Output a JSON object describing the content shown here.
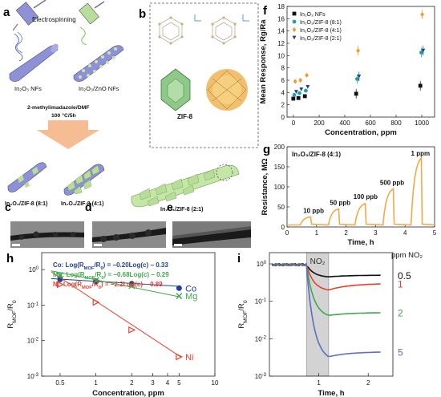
{
  "panels": {
    "a": {
      "letter": "a",
      "electrospinning": "Electrospinning",
      "nf_label": "In₂O₃ NFs",
      "zno_label": "In₂O₃/ZnO NFs",
      "condition_1": "2-methylimadazole/DMF",
      "condition_2": "100 °C/5h",
      "product_81": "In₂O₃/ZIF-8 (8:1)",
      "product_41": "In₂O₃/ZIF-8 (4:1)",
      "product_21": "In₂O₃/ZIF-8 (2:1)"
    },
    "b": {
      "letter": "b",
      "zif_label": "ZIF-8"
    },
    "c": {
      "letter": "c"
    },
    "d": {
      "letter": "d"
    },
    "e": {
      "letter": "e"
    },
    "f": {
      "letter": "f"
    },
    "g": {
      "letter": "g"
    },
    "h": {
      "letter": "h"
    },
    "i": {
      "letter": "i"
    }
  },
  "colors": {
    "nf_purple": "#8f91d6",
    "zif_green": "#b8dd9a",
    "arrow_orange": "#f4b183",
    "orange_line": "#f2a94a",
    "red": "#e8402a",
    "green": "#3ea94a",
    "blue": "#1f3f9a"
  },
  "chart_data": [
    {
      "id": "f",
      "type": "scatter",
      "xlabel": "Concentration, ppm",
      "ylabel": "Mean Response, Rg/Ra",
      "xlim": [
        -50,
        1100
      ],
      "ylim": [
        0,
        18
      ],
      "xticks": [
        0,
        200,
        400,
        600,
        800,
        1000
      ],
      "yticks": [
        0,
        2,
        4,
        6,
        8,
        10,
        12,
        14,
        16,
        18
      ],
      "legend_position": "top-left",
      "series": [
        {
          "name": "In₂O₃ NFs",
          "color": "#111111",
          "marker": "square",
          "x": [
            10,
            50,
            100,
            500,
            1000
          ],
          "y": [
            3.0,
            3.1,
            3.4,
            3.8,
            5.1
          ]
        },
        {
          "name": "In₂O₃/ZIF-8 (8:1)",
          "color": "#1fa0a8",
          "marker": "circle",
          "x": [
            10,
            50,
            100,
            500,
            1000
          ],
          "y": [
            3.6,
            3.9,
            4.3,
            6.2,
            10.5
          ]
        },
        {
          "name": "In₂O₃/ZIF-8 (4:1)",
          "color": "#f2972c",
          "marker": "diamond",
          "x": [
            10,
            50,
            100,
            500,
            1000
          ],
          "y": [
            5.8,
            6.0,
            6.8,
            10.8,
            16.7
          ]
        },
        {
          "name": "In₂O₃/ZIF-8 (2:1)",
          "color": "#1f3f9a",
          "marker": "triangle-down",
          "x": [
            10,
            50,
            100,
            500,
            1000
          ],
          "y": [
            4.1,
            4.5,
            4.9,
            6.6,
            10.8
          ]
        }
      ]
    },
    {
      "id": "g",
      "type": "line",
      "title": "In₂O₃/ZIF-8 (4:1)",
      "xlabel": "Time, h",
      "ylabel": "Resistance, MΩ",
      "xlim": [
        0,
        5
      ],
      "ylim": [
        0,
        200
      ],
      "xticks": [
        0,
        1,
        2,
        3,
        4,
        5
      ],
      "yticks": [
        0,
        50,
        100,
        150,
        200
      ],
      "annotations": [
        {
          "text": "10 ppb",
          "x": 0.55,
          "y": 35
        },
        {
          "text": "50 ppb",
          "x": 1.45,
          "y": 55
        },
        {
          "text": "100 ppb",
          "x": 2.25,
          "y": 70
        },
        {
          "text": "500 ppb",
          "x": 3.15,
          "y": 105
        },
        {
          "text": "1 ppm",
          "x": 4.2,
          "y": 178
        }
      ],
      "pulses": [
        {
          "start": 0.45,
          "end": 0.8,
          "peak": 25
        },
        {
          "start": 1.4,
          "end": 1.75,
          "peak": 45
        },
        {
          "start": 2.3,
          "end": 2.65,
          "peak": 58
        },
        {
          "start": 3.25,
          "end": 3.6,
          "peak": 95
        },
        {
          "start": 4.2,
          "end": 4.55,
          "peak": 172
        }
      ],
      "baseline": 5
    },
    {
      "id": "h",
      "type": "scatter",
      "xlabel": "Concentration, ppm",
      "ylabel": "R_MOF/R_0",
      "xscale": "log",
      "yscale": "log",
      "xlim": [
        0.35,
        10
      ],
      "ylim": [
        0.001,
        3
      ],
      "xticks": [
        0.5,
        1,
        2,
        3,
        4,
        5,
        10
      ],
      "yticks_log": [
        -3,
        -2,
        -1,
        0
      ],
      "fits": [
        {
          "text": "Co: Log(R_MOF/R_0) = −0.20Log(c) − 0.33",
          "color": "#1f3f9a"
        },
        {
          "text": "Mg: Log(R_MOF/R_0) = −0.68Log(c) − 0.29",
          "color": "#3ea94a"
        },
        {
          "text": "Ni: Log(R_MOF/R_0) = −2.2Log(c) − 0.89",
          "color": "#e8402a"
        }
      ],
      "series": [
        {
          "name": "Co",
          "color": "#1f3f9a",
          "marker": "circle",
          "x": [
            0.5,
            1,
            2,
            5
          ],
          "y": [
            0.53,
            0.47,
            0.4,
            0.3
          ],
          "slope": -0.2,
          "intercept": -0.33
        },
        {
          "name": "Mg",
          "color": "#3ea94a",
          "marker": "x",
          "x": [
            0.5,
            1,
            2,
            5
          ],
          "y": [
            0.7,
            0.5,
            0.35,
            0.18
          ],
          "slope": -0.68,
          "intercept": -0.29
        },
        {
          "name": "Ni",
          "color": "#e8402a",
          "marker": "triangle-right",
          "x": [
            0.5,
            1,
            2,
            5
          ],
          "y": [
            0.38,
            0.12,
            0.02,
            0.0035
          ],
          "slope": -2.2,
          "intercept": -0.89
        }
      ]
    },
    {
      "id": "i",
      "type": "line",
      "xlabel": "Time, h",
      "ylabel": "R_MOF/R_0",
      "yscale": "log",
      "xlim": [
        0,
        2.5
      ],
      "ylim_log": [
        -3,
        0.3
      ],
      "xticks": [
        1,
        2
      ],
      "yticks_log": [
        -3,
        -2,
        -1,
        0
      ],
      "exposure": {
        "label": "NO₂",
        "start": 0.75,
        "end": 1.2
      },
      "legend_title": "ppm NO₂",
      "series": [
        {
          "name": "0.5",
          "color": "#111111",
          "end_value": 0.5,
          "min_value": 0.45
        },
        {
          "name": "1",
          "color": "#e8402a",
          "end_value": 0.3,
          "min_value": 0.2
        },
        {
          "name": "2",
          "color": "#3ea94a",
          "end_value": 0.05,
          "min_value": 0.042
        },
        {
          "name": "5",
          "color": "#5a6ec2",
          "end_value": 0.0045,
          "min_value": 0.0033
        }
      ]
    }
  ]
}
